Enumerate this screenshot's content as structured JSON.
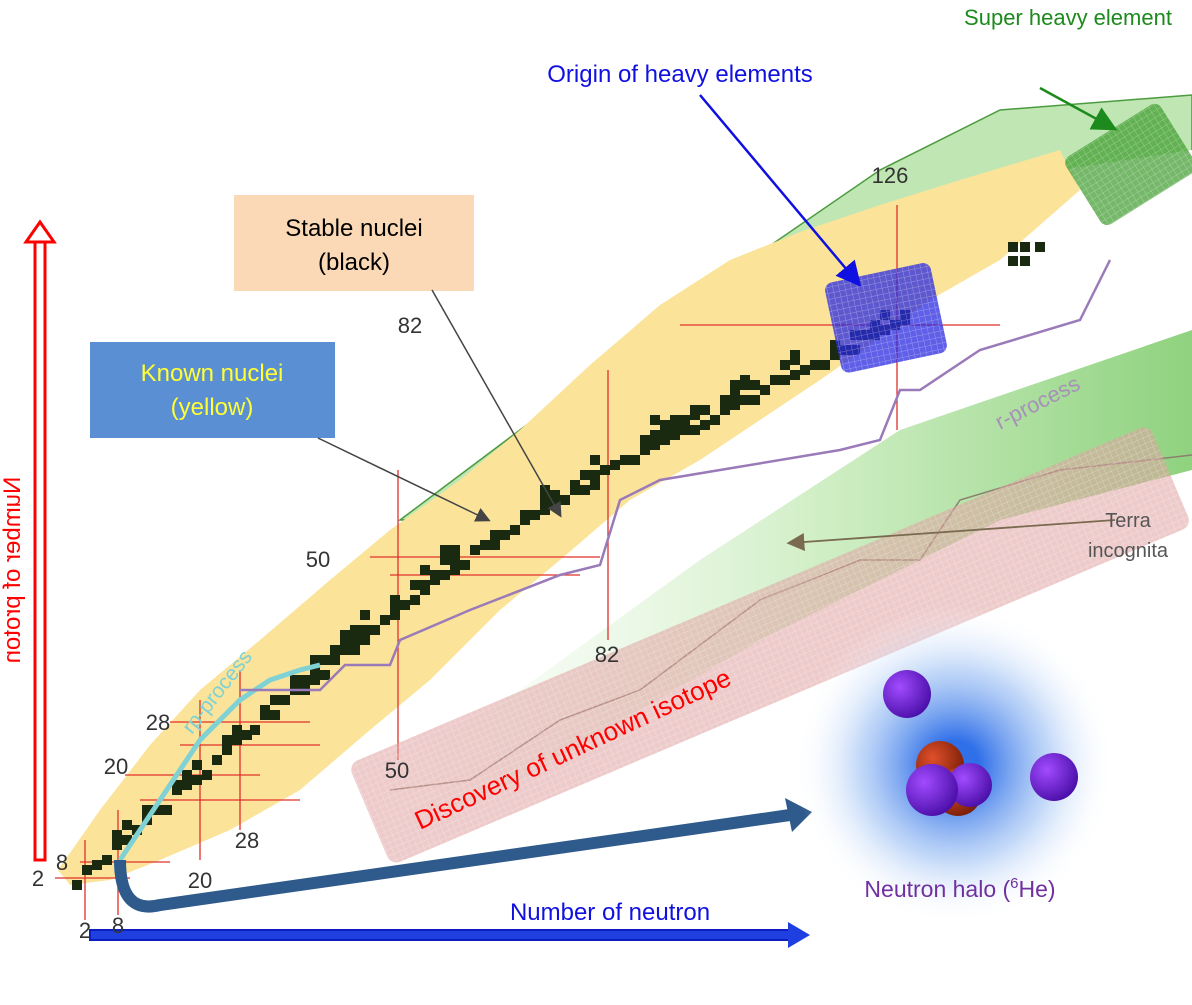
{
  "annotations": {
    "super_heavy": "Super heavy element",
    "origin_heavy": "Origin of heavy elements",
    "stable": [
      "Stable nuclei",
      "(black)"
    ],
    "known": [
      "Known nuclei",
      "(yellow)"
    ],
    "terra": [
      "Terra",
      "incognita"
    ],
    "r_process": "r-process",
    "rp_process": "rp-process",
    "discovery": "Discovery of unknown isotope",
    "halo": {
      "text": "Neutron halo (",
      "sup": "6",
      "end": "He)"
    }
  },
  "axes": {
    "x": "Number of neutron",
    "y": "Number of proton"
  },
  "magic_numbers": {
    "proton": [
      2,
      8,
      20,
      28,
      50,
      82
    ],
    "neutron": [
      2,
      8,
      20,
      28,
      50,
      82,
      126
    ]
  }
}
